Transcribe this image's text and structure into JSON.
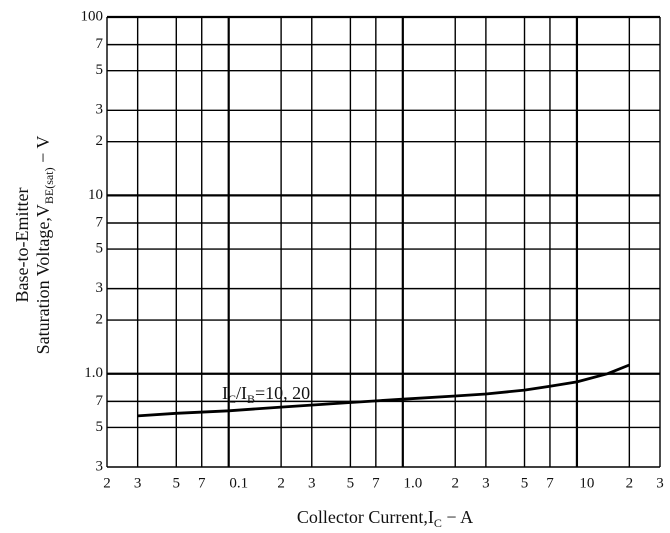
{
  "chart_data": {
    "type": "line",
    "x_label_parts": [
      "Collector Current,I",
      "C",
      " − A"
    ],
    "y_label_lines": [
      "Base-to-Emitter",
      "Saturation Voltage,V",
      "BE(sat)",
      " − V"
    ],
    "annotation_parts": [
      "I",
      "C",
      "/I",
      "B",
      "=10, 20"
    ],
    "log_x": true,
    "log_y": true,
    "grid": true,
    "xlim": [
      0.02,
      30
    ],
    "ylim": [
      0.3,
      100
    ],
    "xticks": [
      {
        "value": 0.02,
        "label": "2"
      },
      {
        "value": 0.03,
        "label": "3"
      },
      {
        "value": 0.05,
        "label": "5"
      },
      {
        "value": 0.07,
        "label": "7"
      },
      0.1,
      {
        "value": 0.2,
        "label": "2"
      },
      {
        "value": 0.3,
        "label": "3"
      },
      {
        "value": 0.5,
        "label": "5"
      },
      {
        "value": 0.7,
        "label": "7"
      },
      {
        "value": 1,
        "label": "1.0"
      },
      2,
      3,
      5,
      7,
      10,
      {
        "value": 20,
        "label": "2"
      },
      {
        "value": 30,
        "label": "3"
      }
    ],
    "yticks": [
      {
        "value": 0.3,
        "label": "3"
      },
      {
        "value": 0.5,
        "label": "5"
      },
      {
        "value": 0.7,
        "label": "7"
      },
      {
        "value": 1,
        "label": "1.0"
      },
      2,
      3,
      5,
      7,
      10,
      {
        "value": 20,
        "label": "2"
      },
      {
        "value": 30,
        "label": "3"
      },
      {
        "value": 50,
        "label": "5"
      },
      {
        "value": 70,
        "label": "7"
      },
      100
    ],
    "x": [
      0.03,
      0.05,
      0.1,
      0.2,
      0.5,
      1,
      2,
      3,
      5,
      7,
      10,
      15,
      20
    ],
    "series": [
      {
        "color": "#000000",
        "values": [
          0.58,
          0.6,
          0.62,
          0.65,
          0.69,
          0.72,
          0.75,
          0.77,
          0.81,
          0.85,
          0.9,
          1.0,
          1.12
        ]
      }
    ]
  }
}
